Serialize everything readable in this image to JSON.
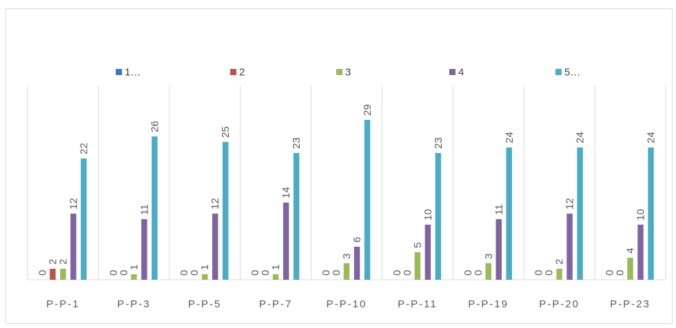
{
  "chart_data": {
    "type": "bar",
    "title": "",
    "xlabel": "",
    "ylabel": "",
    "ylim": [
      0,
      30
    ],
    "grid": "vertical category separators",
    "legend_position": "top",
    "categories": [
      "P-P-1",
      "P-P-3",
      "P-P-5",
      "P-P-7",
      "P-P-10",
      "P-P-11",
      "P-P-19",
      "P-P-20",
      "P-P-23"
    ],
    "series": [
      {
        "name": "1…",
        "color": "#4472c4",
        "values": [
          0,
          0,
          0,
          0,
          0,
          0,
          0,
          0,
          0
        ]
      },
      {
        "name": "2",
        "color": "#c0504d",
        "values": [
          2,
          0,
          0,
          0,
          0,
          0,
          0,
          0,
          0
        ]
      },
      {
        "name": "3",
        "color": "#9bbb59",
        "values": [
          2,
          1,
          1,
          1,
          3,
          5,
          3,
          2,
          4
        ]
      },
      {
        "name": "4",
        "color": "#8064a2",
        "values": [
          12,
          11,
          12,
          14,
          6,
          10,
          11,
          12,
          10
        ]
      },
      {
        "name": "5…",
        "color": "#4bacc6",
        "values": [
          22,
          26,
          25,
          23,
          29,
          23,
          24,
          24,
          24
        ]
      }
    ]
  }
}
